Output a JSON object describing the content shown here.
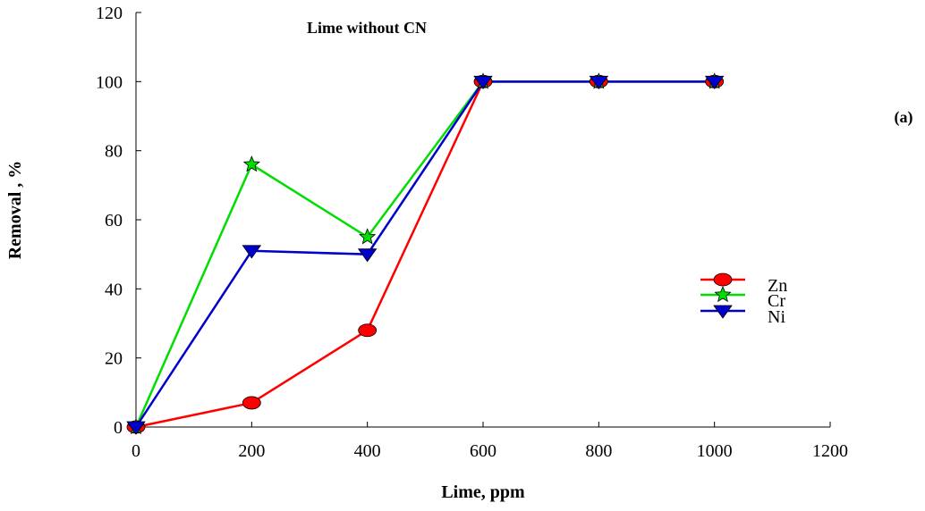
{
  "chart_data": {
    "type": "line",
    "title": "Lime without CN",
    "panel_label": "(a)",
    "xlabel": "Lime, ppm",
    "ylabel": "Removal , %",
    "xlim": [
      0,
      1200
    ],
    "ylim": [
      0,
      120
    ],
    "xticks": [
      0,
      200,
      400,
      600,
      800,
      1000,
      1200
    ],
    "yticks": [
      0,
      20,
      40,
      60,
      80,
      100,
      120
    ],
    "x": [
      0,
      200,
      400,
      600,
      800,
      1000
    ],
    "series": [
      {
        "name": "Zn",
        "values": [
          0,
          7,
          28,
          100,
          100,
          100
        ],
        "color": "#ff0000",
        "marker": "circle"
      },
      {
        "name": "Cr",
        "values": [
          0,
          76,
          55,
          100,
          100,
          100
        ],
        "color": "#00dd00",
        "marker": "star"
      },
      {
        "name": "Ni",
        "values": [
          0,
          51,
          50,
          100,
          100,
          100
        ],
        "color": "#0000cc",
        "marker": "triangle-down"
      }
    ],
    "grid": false,
    "legend": "right"
  }
}
